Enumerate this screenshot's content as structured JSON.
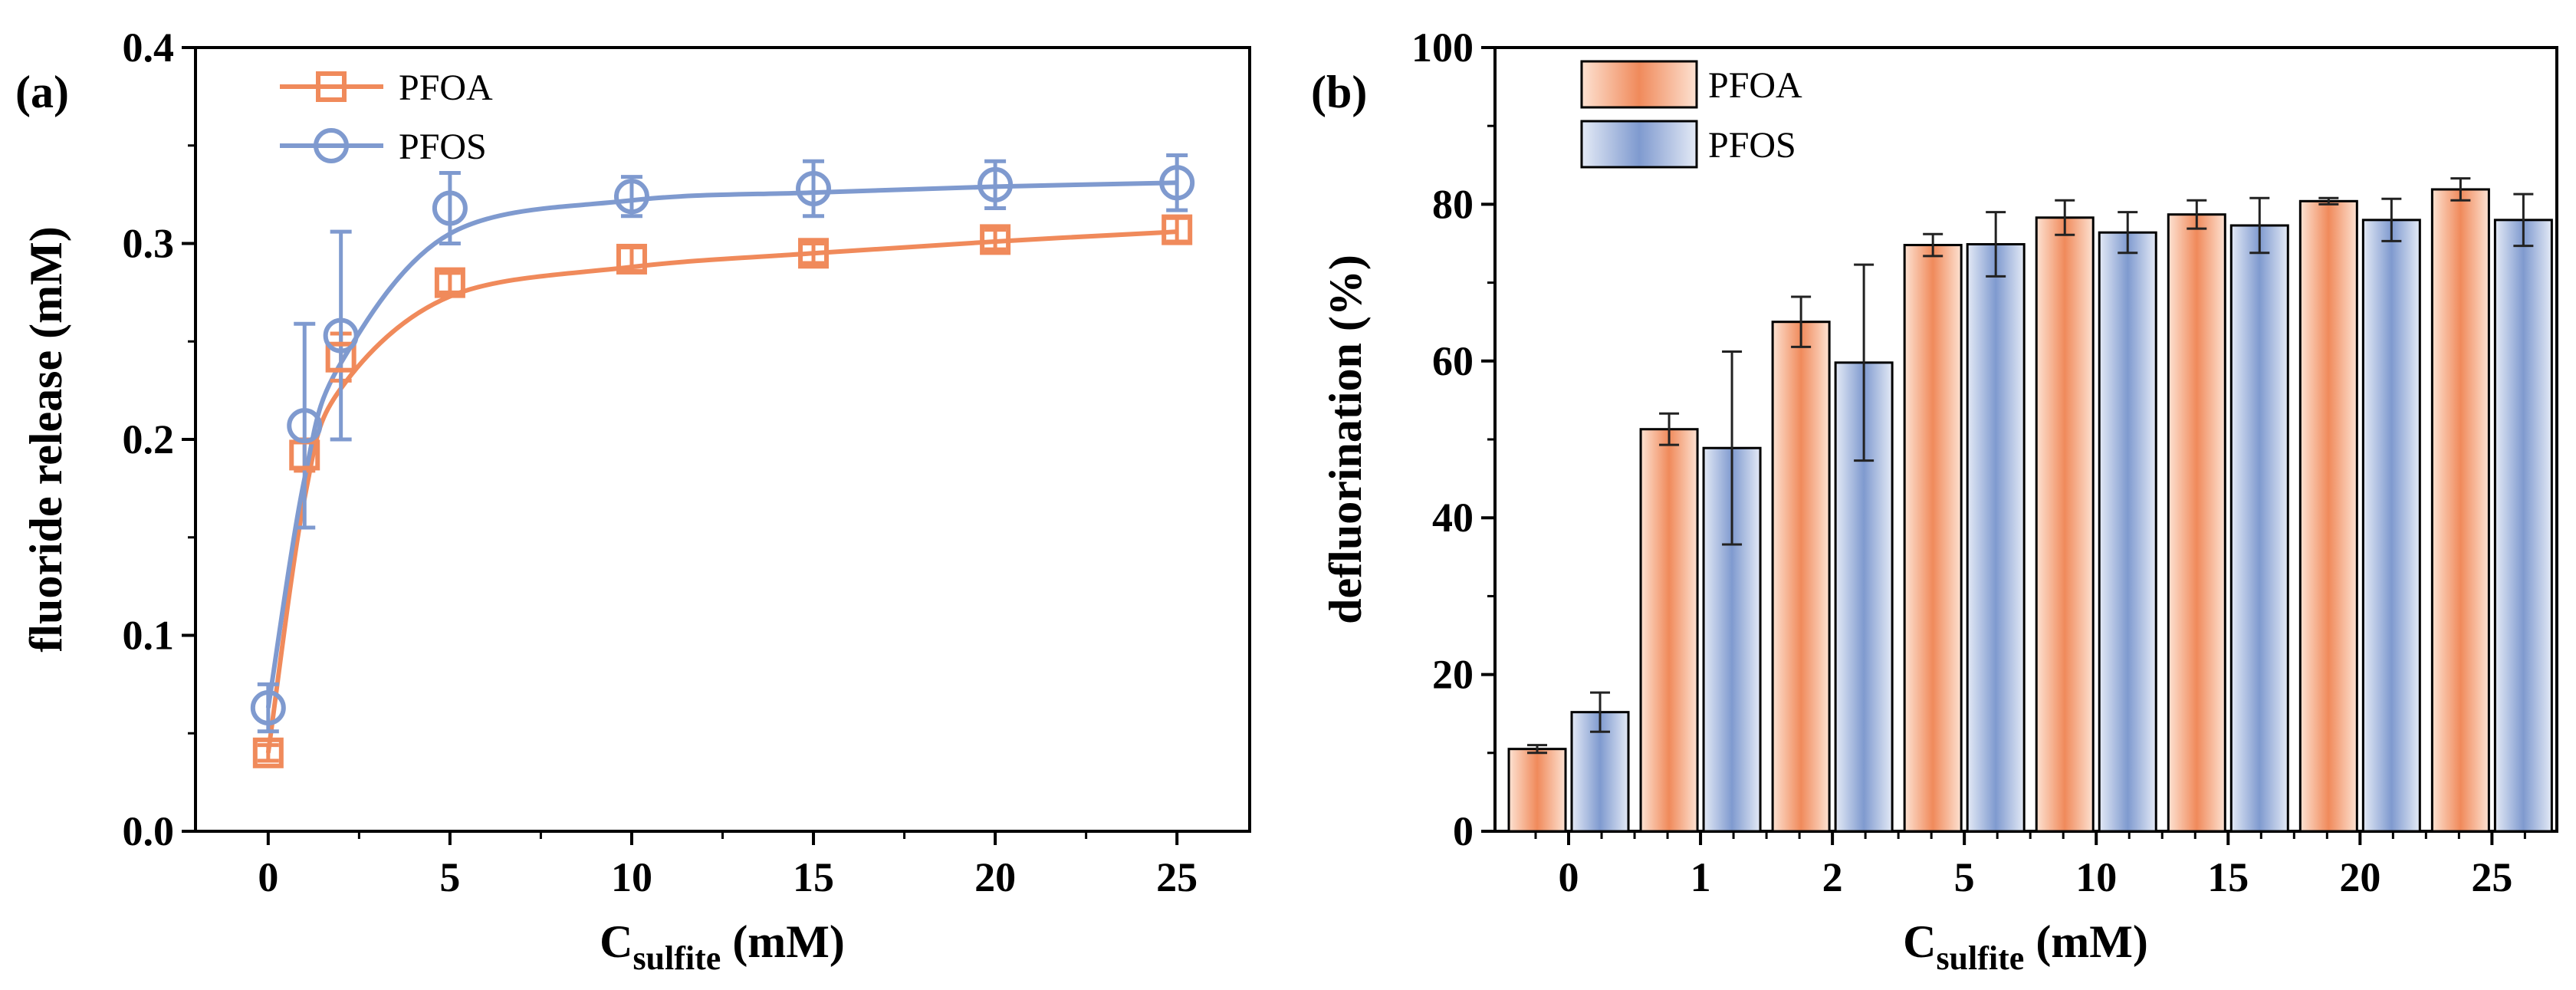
{
  "colors": {
    "pfoa": "#F08A5B",
    "pfos": "#7F9ACF",
    "pfoa_light": "#FDE2D2",
    "pfos_light": "#E4EAF6",
    "axis": "#000000",
    "errbar": "#222222"
  },
  "chart_data": [
    {
      "panel": "(a)",
      "type": "line",
      "x": [
        0,
        1,
        2,
        5,
        10,
        15,
        20,
        25
      ],
      "xlim": [
        -2,
        27
      ],
      "ylim": [
        0.0,
        0.4
      ],
      "xticks": [
        "0",
        "5",
        "10",
        "15",
        "20",
        "25"
      ],
      "yticks": [
        "0.0",
        "0.1",
        "0.2",
        "0.3",
        "0.4"
      ],
      "xlabel_main": "C",
      "xlabel_sub": "sulfite",
      "xlabel_unit": " (mM)",
      "ylabel": "fluoride release (mM)",
      "legend_position": "top-left",
      "series": [
        {
          "name": "PFOA",
          "marker": "square",
          "values": [
            0.04,
            0.192,
            0.242,
            0.28,
            0.292,
            0.295,
            0.302,
            0.307
          ],
          "errors": [
            0.004,
            0.008,
            0.012,
            0.005,
            0.006,
            0.005,
            0.005,
            0.006
          ],
          "fit": [
            0.04,
            0.17,
            0.226,
            0.273,
            0.288,
            0.295,
            0.301,
            0.306
          ]
        },
        {
          "name": "PFOS",
          "marker": "circle",
          "values": [
            0.063,
            0.207,
            0.253,
            0.318,
            0.324,
            0.328,
            0.33,
            0.331
          ],
          "errors": [
            0.012,
            0.052,
            0.053,
            0.018,
            0.01,
            0.014,
            0.012,
            0.014
          ],
          "fit": [
            0.063,
            0.18,
            0.239,
            0.305,
            0.322,
            0.326,
            0.329,
            0.331
          ]
        }
      ]
    },
    {
      "panel": "(b)",
      "type": "bar",
      "categories": [
        "0",
        "1",
        "2",
        "5",
        "10",
        "15",
        "20",
        "25"
      ],
      "ylim": [
        0,
        100
      ],
      "yticks": [
        "0",
        "20",
        "40",
        "60",
        "80",
        "100"
      ],
      "xlabel_main": "C",
      "xlabel_sub": "sulfite",
      "xlabel_unit": " (mM)",
      "ylabel": "defluorination (%)",
      "legend_position": "top-left",
      "series": [
        {
          "name": "PFOA",
          "values": [
            10.5,
            51.3,
            65.0,
            74.8,
            78.3,
            78.7,
            80.4,
            81.9
          ],
          "errors": [
            0.5,
            2.0,
            3.2,
            1.4,
            2.2,
            1.8,
            0.4,
            1.4
          ]
        },
        {
          "name": "PFOS",
          "values": [
            15.2,
            48.9,
            59.8,
            74.9,
            76.4,
            77.3,
            78.0,
            78.0
          ],
          "errors": [
            2.5,
            12.3,
            12.5,
            4.1,
            2.6,
            3.5,
            2.7,
            3.3
          ]
        }
      ]
    }
  ]
}
